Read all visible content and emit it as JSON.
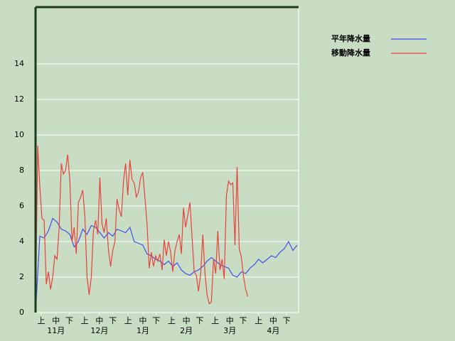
{
  "chart_data": {
    "type": "line",
    "xlim": [
      0,
      184
    ],
    "ylim": [
      0,
      17.2
    ],
    "yticks": [
      0,
      2,
      4,
      6,
      8,
      10,
      12,
      14
    ],
    "grid": true,
    "legend": "right",
    "xticks": [
      {
        "value": 4,
        "label": "上"
      },
      {
        "value": 14.3,
        "label": "中"
      },
      {
        "value": 23.6,
        "label": "下"
      },
      {
        "value": 34.4,
        "label": "上"
      },
      {
        "value": 44.7,
        "label": "中"
      },
      {
        "value": 54,
        "label": "下"
      },
      {
        "value": 64.8,
        "label": "上"
      },
      {
        "value": 75.1,
        "label": "中"
      },
      {
        "value": 84.4,
        "label": "下"
      },
      {
        "value": 95.2,
        "label": "上"
      },
      {
        "value": 105.5,
        "label": "中"
      },
      {
        "value": 114.8,
        "label": "下"
      },
      {
        "value": 125.6,
        "label": "上"
      },
      {
        "value": 135.9,
        "label": "中"
      },
      {
        "value": 145.2,
        "label": "下"
      },
      {
        "value": 156,
        "label": "上"
      },
      {
        "value": 166.3,
        "label": "中"
      },
      {
        "value": 175.6,
        "label": "下"
      }
    ],
    "month_labels": [
      {
        "value": 14.3,
        "label": "11月"
      },
      {
        "value": 44.7,
        "label": "12月"
      },
      {
        "value": 75.1,
        "label": "1月"
      },
      {
        "value": 105.5,
        "label": "2月"
      },
      {
        "value": 135.9,
        "label": "3月"
      },
      {
        "value": 166.3,
        "label": "4月"
      }
    ],
    "series": [
      {
        "name": "平年降水量",
        "color": "#3f51ef",
        "x": [
          0,
          3,
          6,
          9,
          12,
          15,
          18,
          21,
          24,
          27,
          30,
          33,
          36,
          39,
          42,
          45,
          48,
          51,
          54,
          57,
          60,
          63,
          66,
          69,
          72,
          75,
          78,
          81,
          84,
          87,
          90,
          93,
          96,
          99,
          102,
          105,
          108,
          111,
          114,
          117,
          120,
          123,
          126,
          129,
          132,
          135,
          138,
          141,
          144,
          147,
          150,
          153,
          156,
          159,
          162,
          165,
          168,
          171,
          174,
          177,
          180,
          183
        ],
        "values": [
          0,
          4.3,
          4.2,
          4.6,
          5.3,
          5.1,
          4.7,
          4.6,
          4.4,
          3.7,
          4.0,
          4.7,
          4.4,
          4.9,
          4.8,
          4.5,
          4.2,
          4.5,
          4.3,
          4.7,
          4.6,
          4.5,
          4.8,
          4.0,
          3.9,
          3.8,
          3.3,
          3.2,
          3.0,
          2.9,
          2.7,
          2.9,
          2.6,
          2.8,
          2.4,
          2.2,
          2.1,
          2.3,
          2.4,
          2.6,
          2.9,
          3.1,
          2.9,
          2.7,
          2.6,
          2.5,
          2.1,
          2.0,
          2.3,
          2.2,
          2.5,
          2.7,
          3.0,
          2.8,
          3.0,
          3.2,
          3.1,
          3.4,
          3.6,
          4.0,
          3.5,
          3.8
        ]
      },
      {
        "name": "移動降水量",
        "color": "#e8433a",
        "x": [
          0,
          1.5,
          3,
          4.5,
          6,
          7.5,
          9,
          10.5,
          12,
          13.5,
          15,
          16.5,
          18,
          19.5,
          21,
          22.5,
          24,
          25.5,
          27,
          28.5,
          30,
          31.5,
          33,
          34.5,
          36,
          37.5,
          39,
          40.5,
          42,
          43.5,
          45,
          46.5,
          48,
          49.5,
          51,
          52.5,
          54,
          55.5,
          57,
          58.5,
          60,
          61.5,
          63,
          64.5,
          66,
          67.5,
          69,
          70.5,
          72,
          73.5,
          75,
          76.5,
          78,
          79.5,
          81,
          82.5,
          84,
          85.5,
          87,
          88.5,
          90,
          91.5,
          93,
          94.5,
          96,
          97.5,
          99,
          100.5,
          102,
          103.5,
          105,
          106.5,
          108,
          109.5,
          111,
          112.5,
          114,
          115.5,
          117,
          118.5,
          120,
          121.5,
          123,
          124.5,
          126,
          127.5,
          129,
          130.5,
          132,
          133.5,
          135,
          136.5,
          138,
          139.5,
          141,
          142.5,
          144,
          145.5,
          147,
          148.5
        ],
        "values": [
          0,
          9.4,
          7.1,
          5.3,
          5.2,
          1.6,
          2.3,
          1.3,
          2.0,
          3.2,
          3.0,
          4.8,
          8.4,
          7.8,
          8.0,
          8.9,
          7.4,
          4.0,
          4.8,
          3.3,
          6.2,
          6.5,
          6.9,
          5.4,
          2.0,
          1.0,
          2.0,
          4.6,
          5.2,
          4.4,
          7.6,
          5.0,
          4.5,
          5.3,
          3.5,
          2.6,
          3.5,
          4.0,
          6.4,
          5.8,
          5.4,
          7.4,
          8.4,
          6.6,
          8.6,
          7.5,
          7.3,
          6.5,
          6.8,
          7.6,
          7.9,
          6.5,
          5.0,
          2.5,
          3.4,
          2.6,
          3.2,
          2.9,
          3.3,
          2.4,
          4.1,
          3.2,
          4.0,
          3.4,
          2.3,
          3.5,
          4.0,
          4.4,
          3.3,
          5.9,
          4.8,
          5.5,
          6.2,
          4.2,
          2.3,
          2.1,
          1.2,
          2.2,
          4.4,
          2.2,
          1.0,
          0.5,
          0.6,
          3.0,
          2.2,
          4.6,
          2.4,
          3.0,
          1.9,
          6.6,
          7.4,
          7.2,
          7.3,
          3.8,
          8.2,
          3.6,
          3.1,
          2.0,
          1.3,
          0.9
        ]
      }
    ]
  }
}
